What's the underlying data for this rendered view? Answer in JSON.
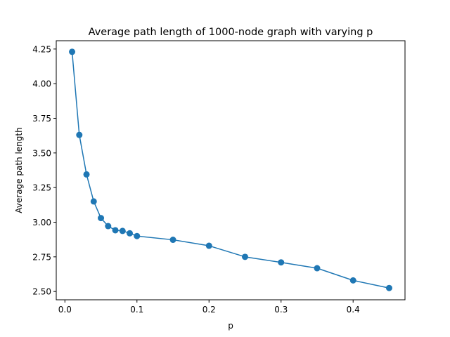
{
  "chart_data": {
    "type": "line",
    "title": "Average path length of 1000-node graph with varying p",
    "xlabel": "p",
    "ylabel": "Average path length",
    "xlim": [
      -0.012,
      0.472
    ],
    "ylim": [
      2.44,
      4.31
    ],
    "x_ticks": [
      0.0,
      0.1,
      0.2,
      0.3,
      0.4
    ],
    "x_tick_labels": [
      "0.0",
      "0.1",
      "0.2",
      "0.3",
      "0.4"
    ],
    "y_ticks": [
      2.5,
      2.75,
      3.0,
      3.25,
      3.5,
      3.75,
      4.0,
      4.25
    ],
    "y_tick_labels": [
      "2.50",
      "2.75",
      "3.00",
      "3.25",
      "3.50",
      "3.75",
      "4.00",
      "4.25"
    ],
    "grid": false,
    "legend": false,
    "series": [
      {
        "color": "#1f77b4",
        "marker": "circle",
        "x": [
          0.01,
          0.02,
          0.03,
          0.04,
          0.05,
          0.06,
          0.07,
          0.08,
          0.09,
          0.1,
          0.15,
          0.2,
          0.25,
          0.3,
          0.35,
          0.4,
          0.45
        ],
        "y": [
          4.23,
          3.63,
          3.345,
          3.15,
          3.03,
          2.972,
          2.942,
          2.937,
          2.92,
          2.9,
          2.873,
          2.83,
          2.75,
          2.71,
          2.668,
          2.58,
          2.525
        ]
      }
    ]
  }
}
